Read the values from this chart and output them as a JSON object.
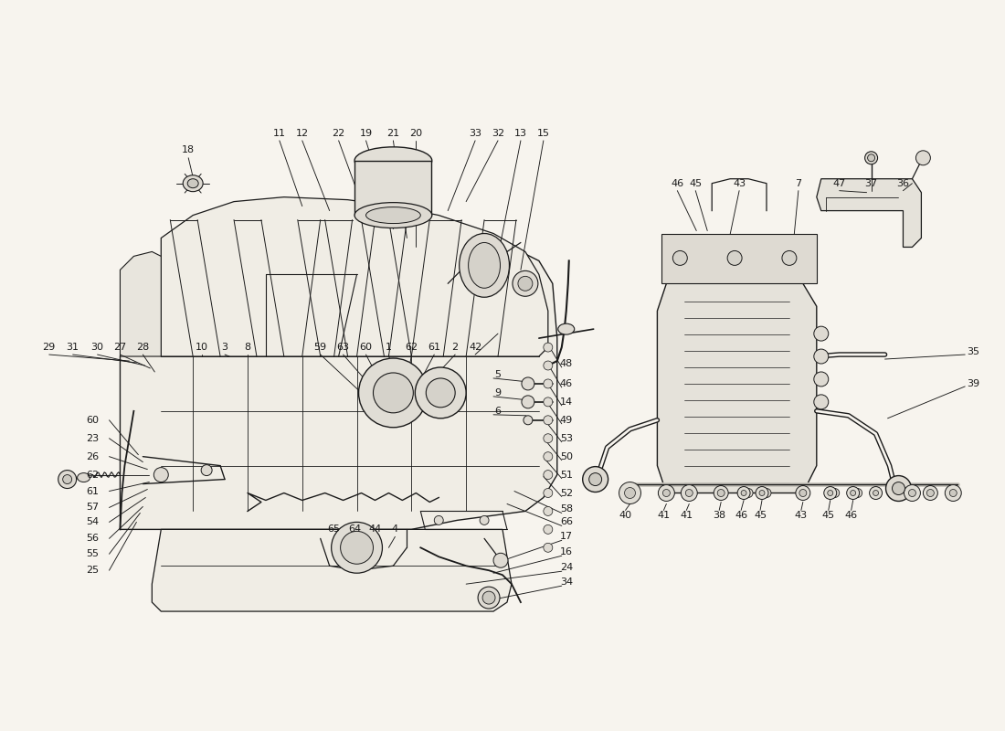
{
  "bg_color": "#f7f4ee",
  "line_color": "#1a1a1a",
  "label_color": "#111111",
  "fig_width": 11.0,
  "fig_height": 8.0
}
